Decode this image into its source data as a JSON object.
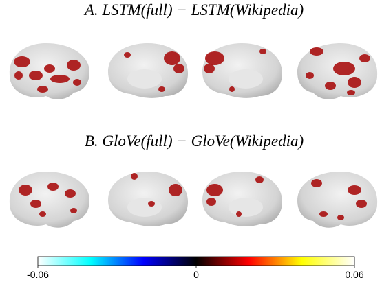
{
  "panels": [
    {
      "title": "A. LSTM(full) − LSTM(Wikipedia)"
    },
    {
      "title": "B. GloVe(full) − GloVe(Wikipedia)"
    }
  ],
  "colorbar": {
    "lim": [
      -0.06,
      0.06
    ],
    "ticks": [
      -0.06,
      0,
      0.06
    ],
    "colors": [
      "#ffffff",
      "#00ffff",
      "#0000ff",
      "#000000",
      "#ff0000",
      "#ffff00",
      "#ffffff"
    ]
  }
}
